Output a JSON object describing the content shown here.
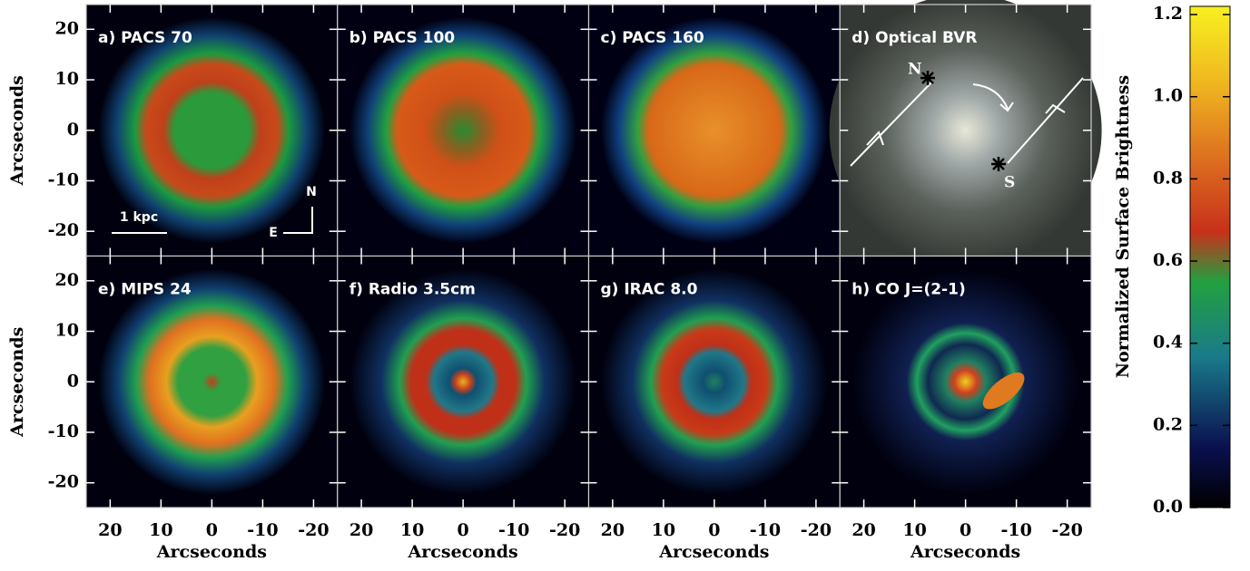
{
  "figure": {
    "panels": [
      {
        "label": "a) PACS 70"
      },
      {
        "label": "b) PACS 100"
      },
      {
        "label": "c) PACS 160"
      },
      {
        "label": "d) Optical BVR"
      },
      {
        "label": "e) MIPS 24"
      },
      {
        "label": "f) Radio 3.5cm"
      },
      {
        "label": "g) IRAC 8.0"
      },
      {
        "label": "h) CO J=(2-1)"
      }
    ],
    "x_axis_label": "Arcseconds",
    "y_axis_label": "Arcseconds",
    "xlim": [
      24.7,
      -24.7
    ],
    "xticks": [
      20,
      10,
      0,
      -10,
      -20
    ],
    "ylim": [
      -24.9,
      24.9
    ],
    "yticks": [
      -20,
      -10,
      0,
      10,
      20
    ],
    "annotations": {
      "scale_bar": "1 kpc",
      "compass_north": "N",
      "compass_east": "E",
      "optical_north": "N",
      "optical_south": "S"
    },
    "colorbar": {
      "label": "Normalized Surface Brightness",
      "lim": [
        0,
        1.22
      ],
      "ticks": [
        {
          "value": 0,
          "label": "0.0"
        },
        0.2,
        0.4,
        0.6,
        0.8,
        {
          "value": 1,
          "label": "1.0"
        },
        1.2
      ]
    }
  }
}
